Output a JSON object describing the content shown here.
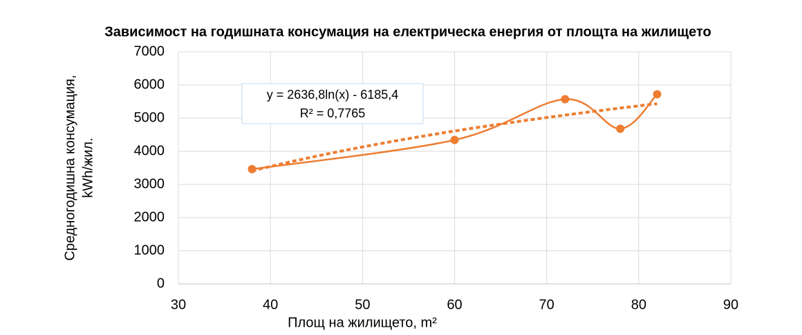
{
  "chart_data": {
    "type": "scatter",
    "title": "Зависимост на годишната консумация на електрическа енергия от площта на жилището",
    "xlabel": "Площ на жилището, m²",
    "ylabel": [
      "Средногодишна консумация,",
      "kWh/жил."
    ],
    "x": [
      38,
      60,
      72,
      78,
      82
    ],
    "values": [
      3460,
      4340,
      5570,
      4680,
      5720
    ],
    "color": "#ed7d31",
    "smooth": true,
    "trendline": {
      "type": "logarithmic",
      "a": 2636.8,
      "b": -6185.4,
      "equation": "y = 2636,8ln(x) - 6185,4",
      "r2": "R² = 0,7765"
    },
    "xlim": [
      30,
      90
    ],
    "xticks": [
      30,
      40,
      50,
      60,
      70,
      80,
      90
    ],
    "ylim": [
      0,
      7000
    ],
    "yticks": [
      0,
      1000,
      2000,
      3000,
      4000,
      5000,
      6000,
      7000
    ],
    "grid": true
  }
}
